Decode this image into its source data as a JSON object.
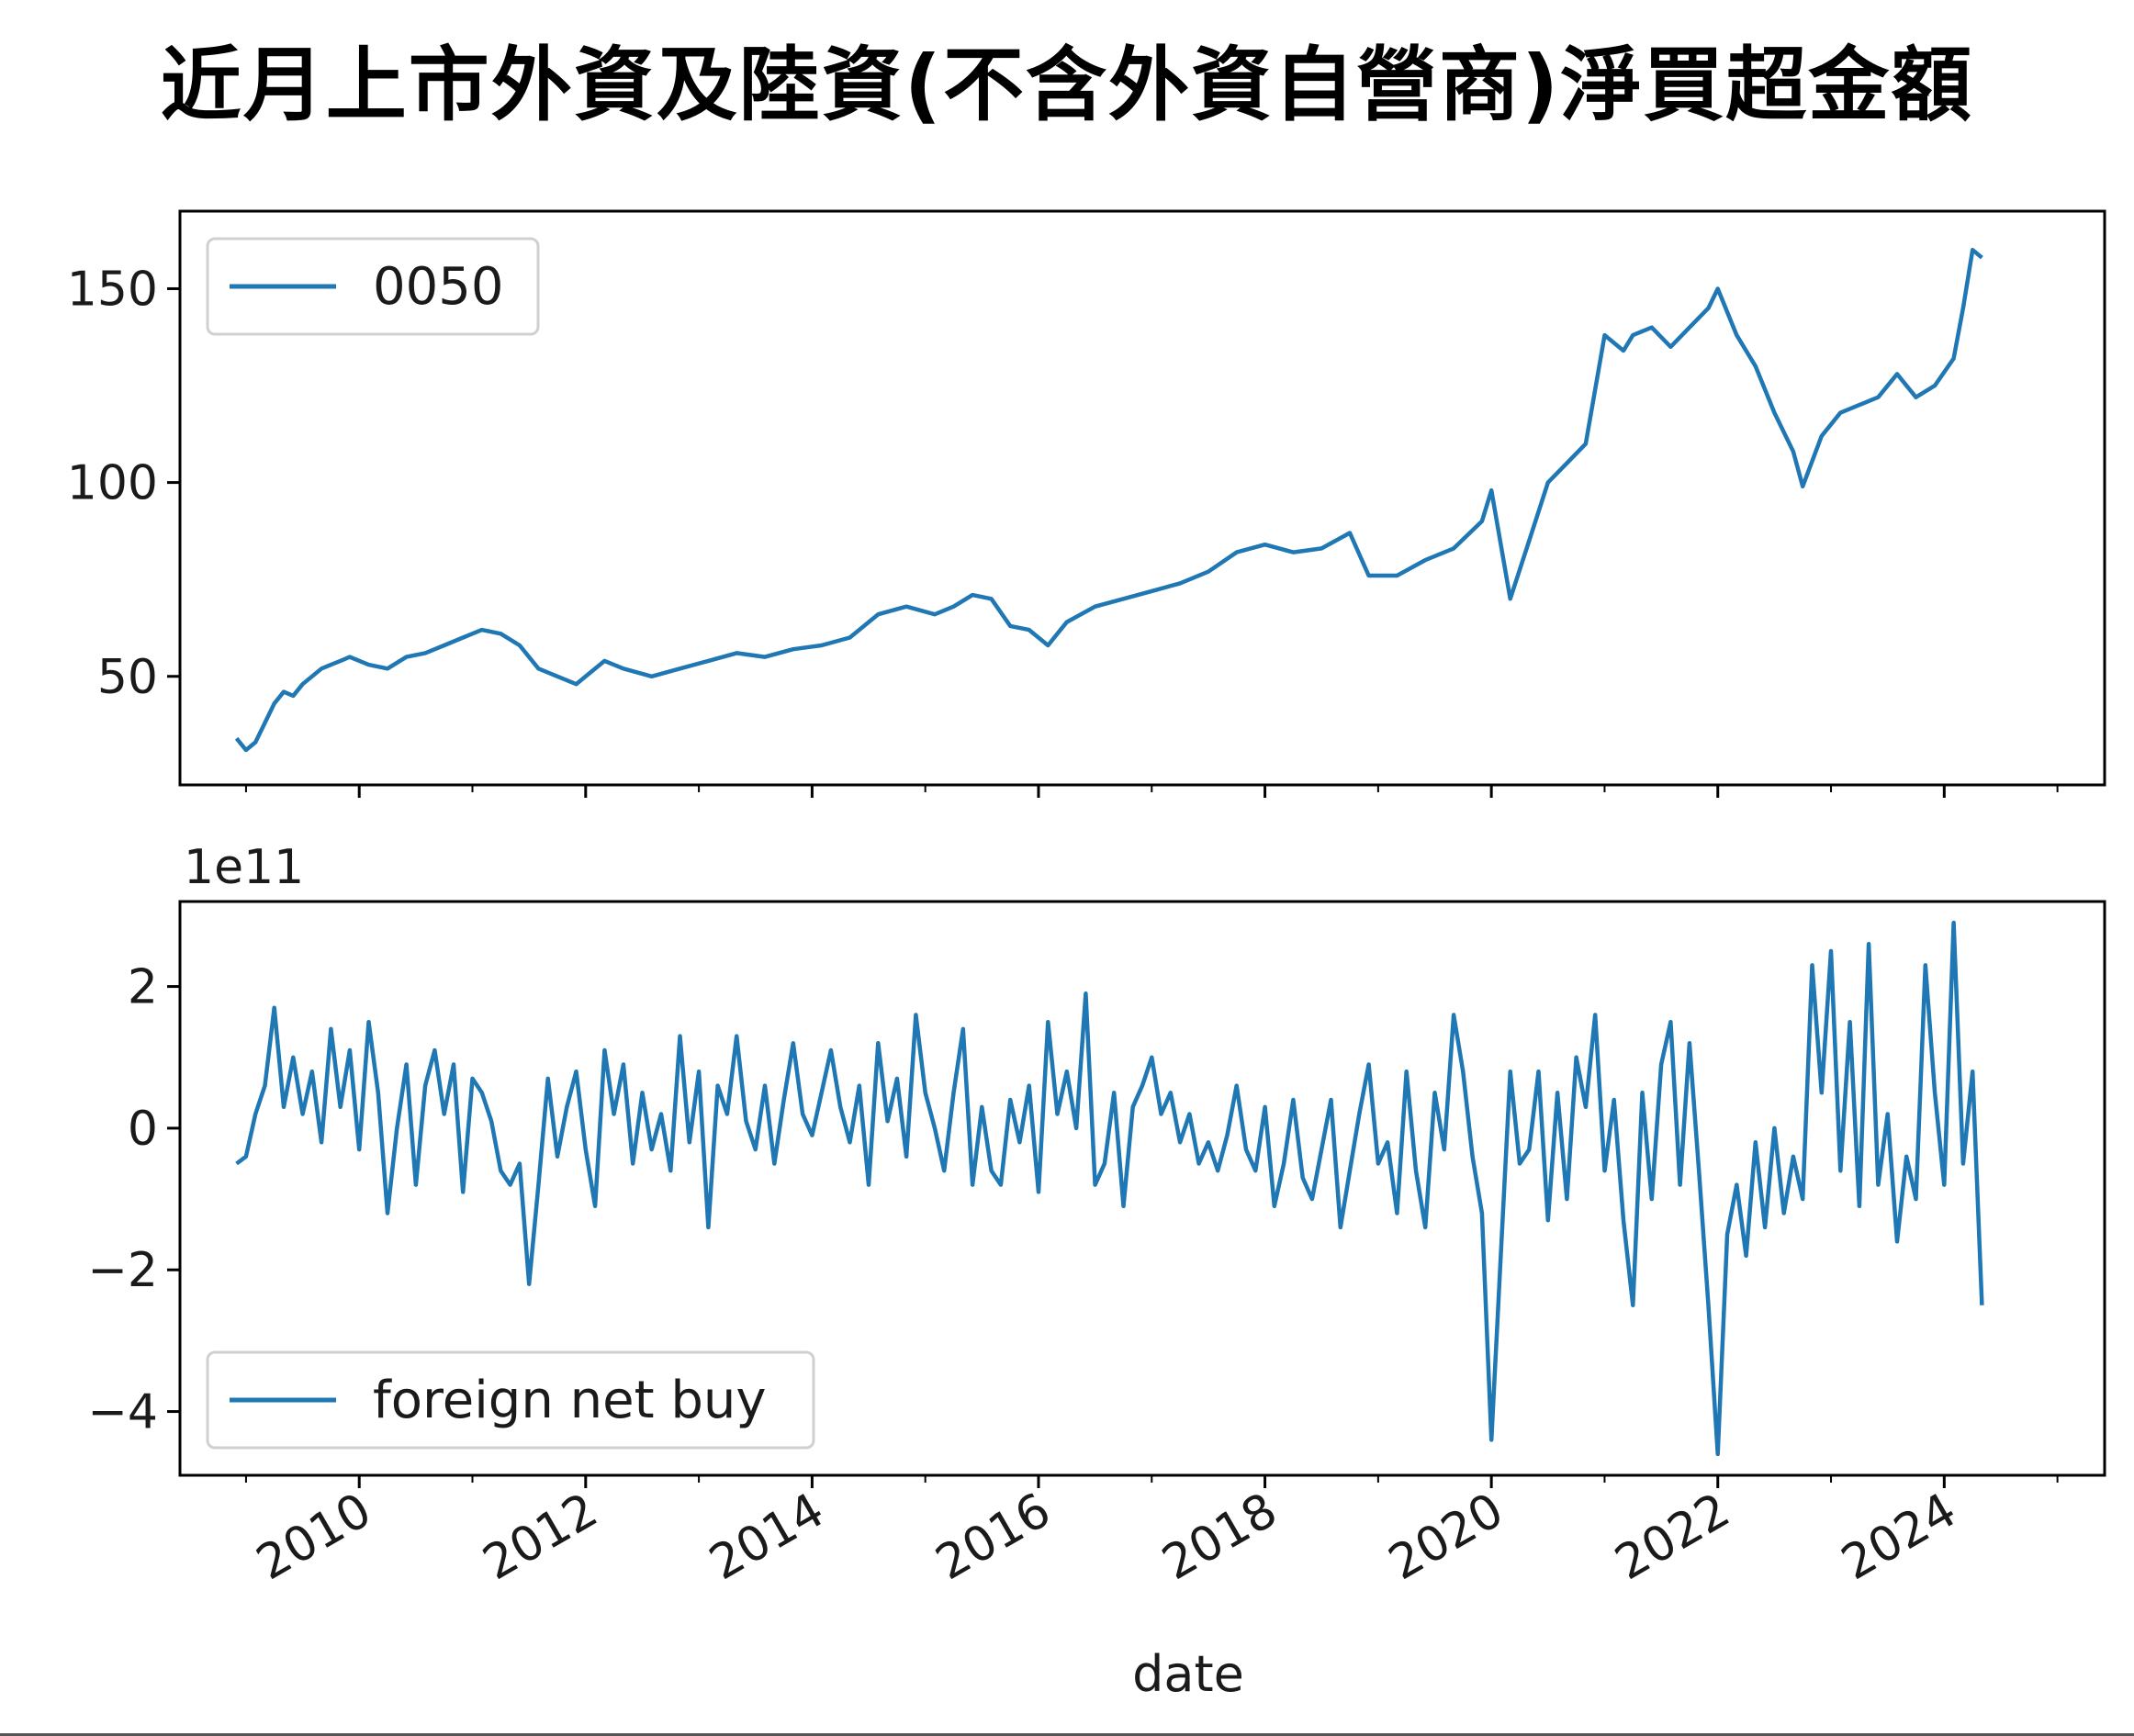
{
  "figure": {
    "title": "近月上市外資及陸資(不含外資自營商)淨買超金額",
    "line_color": "#1f77b4"
  },
  "chart_data": [
    {
      "type": "line",
      "panel": "top",
      "series": [
        {
          "name": "0050",
          "x": [
            "2008-12",
            "2009-01",
            "2009-02",
            "2009-03",
            "2009-04",
            "2009-05",
            "2009-06",
            "2009-07",
            "2009-08",
            "2009-09",
            "2009-10",
            "2009-11",
            "2009-12",
            "2010-02",
            "2010-04",
            "2010-06",
            "2010-08",
            "2010-10",
            "2010-12",
            "2011-02",
            "2011-04",
            "2011-06",
            "2011-08",
            "2011-10",
            "2011-12",
            "2012-03",
            "2012-05",
            "2012-08",
            "2012-11",
            "2013-02",
            "2013-05",
            "2013-08",
            "2013-11",
            "2014-02",
            "2014-05",
            "2014-08",
            "2014-11",
            "2015-02",
            "2015-04",
            "2015-06",
            "2015-08",
            "2015-10",
            "2015-12",
            "2016-02",
            "2016-04",
            "2016-07",
            "2016-10",
            "2017-01",
            "2017-04",
            "2017-07",
            "2017-10",
            "2018-01",
            "2018-04",
            "2018-07",
            "2018-10",
            "2018-12",
            "2019-03",
            "2019-06",
            "2019-09",
            "2019-12",
            "2020-01",
            "2020-03",
            "2020-05",
            "2020-07",
            "2020-09",
            "2020-11",
            "2021-01",
            "2021-03",
            "2021-04",
            "2021-06",
            "2021-08",
            "2021-10",
            "2021-12",
            "2022-01",
            "2022-03",
            "2022-05",
            "2022-07",
            "2022-09",
            "2022-10",
            "2022-12",
            "2023-02",
            "2023-04",
            "2023-06",
            "2023-08",
            "2023-10",
            "2023-12",
            "2024-02",
            "2024-03",
            "2024-04",
            "2024-05"
          ],
          "y": [
            34,
            31,
            33,
            38,
            43,
            46,
            45,
            48,
            50,
            52,
            53,
            54,
            55,
            53,
            52,
            55,
            56,
            58,
            60,
            62,
            61,
            58,
            52,
            50,
            48,
            54,
            52,
            50,
            52,
            54,
            56,
            55,
            57,
            58,
            60,
            66,
            68,
            66,
            68,
            71,
            70,
            63,
            62,
            58,
            64,
            68,
            70,
            72,
            74,
            77,
            82,
            84,
            82,
            83,
            87,
            76,
            76,
            80,
            83,
            90,
            98,
            70,
            85,
            100,
            105,
            110,
            138,
            134,
            138,
            140,
            135,
            140,
            145,
            150,
            138,
            130,
            118,
            108,
            99,
            112,
            118,
            120,
            122,
            128,
            122,
            125,
            132,
            145,
            160,
            158
          ]
        }
      ],
      "xlim": [
        "2008-06",
        "2025-06"
      ],
      "ylim": [
        22,
        170
      ],
      "y_ticks": [
        50,
        100,
        150
      ],
      "x_ticks": [
        "2010",
        "2012",
        "2014",
        "2016",
        "2018",
        "2020",
        "2022",
        "2024"
      ],
      "legend": "top-left",
      "grid": false
    },
    {
      "type": "line",
      "panel": "bottom",
      "xlabel": "date",
      "y_offset_label": "1e11",
      "series": [
        {
          "name": "foreign net buy",
          "x": [
            "2008-12",
            "2009-01",
            "2009-02",
            "2009-03",
            "2009-04",
            "2009-05",
            "2009-06",
            "2009-07",
            "2009-08",
            "2009-09",
            "2009-10",
            "2009-11",
            "2009-12",
            "2010-01",
            "2010-02",
            "2010-03",
            "2010-04",
            "2010-05",
            "2010-06",
            "2010-07",
            "2010-08",
            "2010-09",
            "2010-10",
            "2010-11",
            "2010-12",
            "2011-01",
            "2011-02",
            "2011-03",
            "2011-04",
            "2011-05",
            "2011-06",
            "2011-07",
            "2011-08",
            "2011-09",
            "2011-10",
            "2011-11",
            "2011-12",
            "2012-01",
            "2012-02",
            "2012-03",
            "2012-04",
            "2012-05",
            "2012-06",
            "2012-07",
            "2012-08",
            "2012-09",
            "2012-10",
            "2012-11",
            "2012-12",
            "2013-01",
            "2013-02",
            "2013-03",
            "2013-04",
            "2013-05",
            "2013-06",
            "2013-07",
            "2013-08",
            "2013-09",
            "2013-10",
            "2013-11",
            "2013-12",
            "2014-01",
            "2014-02",
            "2014-03",
            "2014-04",
            "2014-05",
            "2014-06",
            "2014-07",
            "2014-08",
            "2014-09",
            "2014-10",
            "2014-11",
            "2014-12",
            "2015-01",
            "2015-02",
            "2015-03",
            "2015-04",
            "2015-05",
            "2015-06",
            "2015-07",
            "2015-08",
            "2015-09",
            "2015-10",
            "2015-11",
            "2015-12",
            "2016-01",
            "2016-02",
            "2016-03",
            "2016-04",
            "2016-05",
            "2016-06",
            "2016-07",
            "2016-08",
            "2016-09",
            "2016-10",
            "2016-11",
            "2016-12",
            "2017-01",
            "2017-02",
            "2017-03",
            "2017-04",
            "2017-05",
            "2017-06",
            "2017-07",
            "2017-08",
            "2017-09",
            "2017-10",
            "2017-11",
            "2017-12",
            "2018-01",
            "2018-02",
            "2018-03",
            "2018-04",
            "2018-05",
            "2018-06",
            "2018-07",
            "2018-08",
            "2018-09",
            "2018-10",
            "2018-11",
            "2018-12",
            "2019-01",
            "2019-02",
            "2019-03",
            "2019-04",
            "2019-05",
            "2019-06",
            "2019-07",
            "2019-08",
            "2019-09",
            "2019-10",
            "2019-11",
            "2019-12",
            "2020-01",
            "2020-02",
            "2020-03",
            "2020-04",
            "2020-05",
            "2020-06",
            "2020-07",
            "2020-08",
            "2020-09",
            "2020-10",
            "2020-11",
            "2020-12",
            "2021-01",
            "2021-02",
            "2021-03",
            "2021-04",
            "2021-05",
            "2021-06",
            "2021-07",
            "2021-08",
            "2021-09",
            "2021-10",
            "2021-11",
            "2021-12",
            "2022-01",
            "2022-02",
            "2022-03",
            "2022-04",
            "2022-05",
            "2022-06",
            "2022-07",
            "2022-08",
            "2022-09",
            "2022-10",
            "2022-11",
            "2022-12",
            "2023-01",
            "2023-02",
            "2023-03",
            "2023-04",
            "2023-05",
            "2023-06",
            "2023-07",
            "2023-08",
            "2023-09",
            "2023-10",
            "2023-11",
            "2023-12",
            "2024-01",
            "2024-02",
            "2024-03",
            "2024-04",
            "2024-05"
          ],
          "y": [
            -0.5,
            -0.4,
            0.2,
            0.6,
            1.7,
            0.3,
            1.0,
            0.2,
            0.8,
            -0.2,
            1.4,
            0.3,
            1.1,
            -0.3,
            1.5,
            0.5,
            -1.2,
            0.0,
            0.9,
            -0.8,
            0.6,
            1.1,
            0.2,
            0.9,
            -0.9,
            0.7,
            0.5,
            0.1,
            -0.6,
            -0.8,
            -0.5,
            -2.2,
            -0.8,
            0.7,
            -0.4,
            0.3,
            0.8,
            -0.3,
            -1.1,
            1.1,
            0.2,
            0.9,
            -0.5,
            0.5,
            -0.3,
            0.2,
            -0.6,
            1.3,
            -0.2,
            0.8,
            -1.4,
            0.6,
            0.2,
            1.3,
            0.1,
            -0.3,
            0.6,
            -0.5,
            0.4,
            1.2,
            0.2,
            -0.1,
            0.5,
            1.1,
            0.3,
            -0.2,
            0.6,
            -0.8,
            1.2,
            0.1,
            0.7,
            -0.4,
            1.6,
            0.5,
            0.0,
            -0.6,
            0.5,
            1.4,
            -0.8,
            0.3,
            -0.6,
            -0.8,
            0.4,
            -0.2,
            0.6,
            -0.9,
            1.5,
            0.2,
            0.8,
            0.0,
            1.9,
            -0.8,
            -0.5,
            0.5,
            -1.1,
            0.3,
            0.6,
            1.0,
            0.2,
            0.5,
            -0.2,
            0.2,
            -0.5,
            -0.2,
            -0.6,
            -0.1,
            0.6,
            -0.3,
            -0.6,
            0.3,
            -1.1,
            -0.5,
            0.4,
            -0.7,
            -1.0,
            -0.3,
            0.4,
            -1.4,
            -0.6,
            0.2,
            0.9,
            -0.5,
            -0.2,
            -1.2,
            0.8,
            -0.6,
            -1.4,
            0.5,
            -0.3,
            1.6,
            0.8,
            -0.4,
            -1.2,
            -4.4,
            -1.8,
            0.8,
            -0.5,
            -0.3,
            0.8,
            -1.3,
            0.5,
            -1.0,
            1.0,
            0.3,
            1.6,
            -0.6,
            0.4,
            -1.3,
            -2.5,
            0.5,
            -1.0,
            0.9,
            1.5,
            -0.8,
            1.2,
            -0.6,
            -2.5,
            -4.6,
            -1.5,
            -0.8,
            -1.8,
            -0.2,
            -1.4,
            0.0,
            -1.2,
            -0.4,
            -1.0,
            2.3,
            0.5,
            2.5,
            -0.6,
            1.5,
            -1.1,
            2.6,
            -0.8,
            0.2,
            -1.6,
            -0.4,
            -1.0,
            2.3,
            0.5,
            -0.8,
            2.9,
            -0.5,
            0.8,
            -2.5
          ]
        }
      ],
      "xlim": [
        "2008-06",
        "2025-06"
      ],
      "ylim": [
        -4.9,
        3.2
      ],
      "y_ticks": [
        2,
        0,
        -2,
        -4
      ],
      "y_tick_labels": [
        "2",
        "0",
        "−2",
        "−4"
      ],
      "x_ticks": [
        "2010",
        "2012",
        "2014",
        "2016",
        "2018",
        "2020",
        "2022",
        "2024"
      ],
      "legend": "bottom-left",
      "grid": false
    }
  ]
}
